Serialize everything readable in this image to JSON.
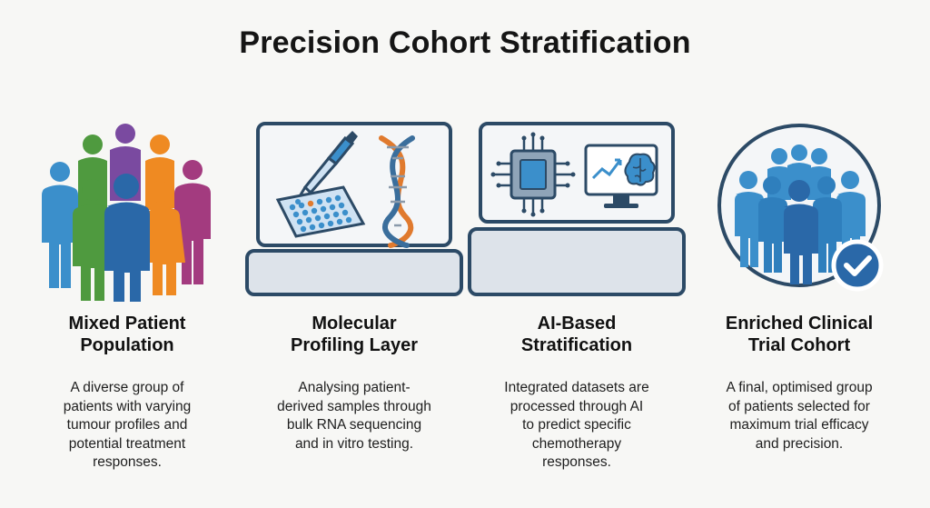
{
  "title": "Precision Cohort Stratification",
  "colors": {
    "blue": "#3b8fcb",
    "darkblue": "#2a68a8",
    "green": "#4f9a3f",
    "purple": "#7a4aa0",
    "orange": "#ef8a22",
    "magenta": "#a33b7f",
    "navy": "#2c4a66",
    "panel": "#dde3ea",
    "dna_orange": "#e07a2e",
    "dna_blue": "#3a6e9c"
  },
  "icons": {
    "step1": "diverse-crowd-icon",
    "step2": "lab-pipette-dna-icon",
    "step3": "ai-chip-monitor-icon",
    "step4": "checked-cohort-icon"
  },
  "steps": [
    {
      "heading": [
        "Mixed Patient",
        "Population"
      ],
      "desc": [
        "A diverse group of",
        "patients with varying",
        "tumour profiles and",
        "potential treatment",
        "responses."
      ]
    },
    {
      "heading": [
        "Molecular",
        "Profiling Layer"
      ],
      "desc": [
        "Analysing patient-",
        "derived samples through",
        "bulk RNA sequencing",
        "and in vitro testing."
      ]
    },
    {
      "heading": [
        "AI-Based",
        "Stratification"
      ],
      "desc": [
        "Integrated datasets are",
        "processed through AI",
        "to predict specific",
        "chemotherapy",
        "responses."
      ]
    },
    {
      "heading": [
        "Enriched Clinical",
        "Trial Cohort"
      ],
      "desc": [
        "A final, optimised group",
        "of patients selected for",
        "maximum trial efficacy",
        "and precision."
      ]
    }
  ]
}
